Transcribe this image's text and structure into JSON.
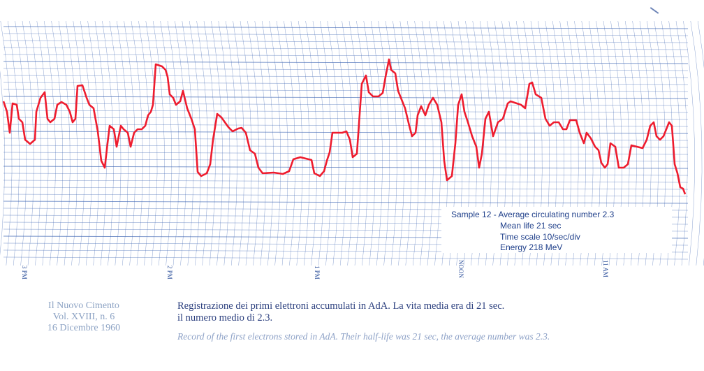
{
  "chart_data": {
    "type": "line",
    "title": "",
    "xlabel": "",
    "ylabel": "",
    "grid": true,
    "grid_color": "#3f66b3",
    "series": [
      {
        "color": "#ee1c2e",
        "points": [
          [
            5,
            145
          ],
          [
            10,
            160
          ],
          [
            14,
            190
          ],
          [
            18,
            148
          ],
          [
            24,
            150
          ],
          [
            27,
            170
          ],
          [
            32,
            175
          ],
          [
            36,
            200
          ],
          [
            43,
            206
          ],
          [
            50,
            200
          ],
          [
            52,
            160
          ],
          [
            58,
            140
          ],
          [
            64,
            132
          ],
          [
            68,
            170
          ],
          [
            72,
            175
          ],
          [
            78,
            170
          ],
          [
            82,
            150
          ],
          [
            88,
            146
          ],
          [
            95,
            150
          ],
          [
            100,
            160
          ],
          [
            104,
            175
          ],
          [
            108,
            170
          ],
          [
            111,
            123
          ],
          [
            118,
            122
          ],
          [
            124,
            140
          ],
          [
            128,
            150
          ],
          [
            134,
            155
          ],
          [
            140,
            188
          ],
          [
            145,
            230
          ],
          [
            150,
            240
          ],
          [
            154,
            205
          ],
          [
            157,
            180
          ],
          [
            163,
            185
          ],
          [
            167,
            210
          ],
          [
            173,
            180
          ],
          [
            177,
            185
          ],
          [
            183,
            190
          ],
          [
            187,
            210
          ],
          [
            192,
            190
          ],
          [
            197,
            185
          ],
          [
            203,
            185
          ],
          [
            208,
            180
          ],
          [
            212,
            165
          ],
          [
            216,
            160
          ],
          [
            219,
            150
          ],
          [
            223,
            92
          ],
          [
            232,
            95
          ],
          [
            237,
            100
          ],
          [
            240,
            110
          ],
          [
            243,
            135
          ],
          [
            248,
            140
          ],
          [
            252,
            150
          ],
          [
            258,
            145
          ],
          [
            262,
            130
          ],
          [
            268,
            155
          ],
          [
            274,
            170
          ],
          [
            279,
            185
          ],
          [
            283,
            246
          ],
          [
            288,
            252
          ],
          [
            296,
            248
          ],
          [
            301,
            235
          ],
          [
            305,
            200
          ],
          [
            311,
            163
          ],
          [
            317,
            168
          ],
          [
            322,
            175
          ],
          [
            327,
            182
          ],
          [
            333,
            188
          ],
          [
            341,
            184
          ],
          [
            346,
            183
          ],
          [
            352,
            190
          ],
          [
            358,
            215
          ],
          [
            365,
            220
          ],
          [
            370,
            240
          ],
          [
            376,
            248
          ],
          [
            392,
            247
          ],
          [
            405,
            249
          ],
          [
            414,
            245
          ],
          [
            420,
            228
          ],
          [
            430,
            225
          ],
          [
            446,
            229
          ],
          [
            450,
            248
          ],
          [
            458,
            252
          ],
          [
            464,
            245
          ],
          [
            468,
            230
          ],
          [
            472,
            218
          ],
          [
            476,
            190
          ],
          [
            490,
            190
          ],
          [
            496,
            188
          ],
          [
            501,
            200
          ],
          [
            505,
            225
          ],
          [
            511,
            220
          ],
          [
            518,
            120
          ],
          [
            524,
            108
          ],
          [
            528,
            132
          ],
          [
            534,
            138
          ],
          [
            542,
            138
          ],
          [
            548,
            133
          ],
          [
            552,
            110
          ],
          [
            557,
            85
          ],
          [
            560,
            100
          ],
          [
            566,
            105
          ],
          [
            570,
            130
          ],
          [
            574,
            140
          ],
          [
            580,
            155
          ],
          [
            586,
            180
          ],
          [
            590,
            195
          ],
          [
            595,
            190
          ],
          [
            598,
            165
          ],
          [
            603,
            152
          ],
          [
            609,
            165
          ],
          [
            614,
            150
          ],
          [
            620,
            140
          ],
          [
            626,
            150
          ],
          [
            632,
            175
          ],
          [
            636,
            230
          ],
          [
            640,
            258
          ],
          [
            647,
            252
          ],
          [
            652,
            205
          ],
          [
            656,
            150
          ],
          [
            661,
            135
          ],
          [
            665,
            160
          ],
          [
            670,
            175
          ],
          [
            676,
            195
          ],
          [
            682,
            210
          ],
          [
            686,
            240
          ],
          [
            690,
            220
          ],
          [
            695,
            170
          ],
          [
            700,
            160
          ],
          [
            706,
            195
          ],
          [
            713,
            175
          ],
          [
            720,
            170
          ],
          [
            727,
            148
          ],
          [
            731,
            145
          ],
          [
            740,
            148
          ],
          [
            746,
            150
          ],
          [
            752,
            155
          ],
          [
            758,
            120
          ],
          [
            762,
            118
          ],
          [
            767,
            135
          ],
          [
            775,
            140
          ],
          [
            781,
            170
          ],
          [
            787,
            180
          ],
          [
            793,
            175
          ],
          [
            800,
            175
          ],
          [
            806,
            185
          ],
          [
            811,
            185
          ],
          [
            816,
            172
          ],
          [
            825,
            172
          ],
          [
            830,
            190
          ],
          [
            836,
            205
          ],
          [
            840,
            190
          ],
          [
            846,
            198
          ],
          [
            852,
            210
          ],
          [
            857,
            215
          ],
          [
            861,
            233
          ],
          [
            866,
            240
          ],
          [
            870,
            235
          ],
          [
            874,
            205
          ],
          [
            881,
            210
          ],
          [
            886,
            240
          ],
          [
            893,
            240
          ],
          [
            899,
            235
          ],
          [
            904,
            208
          ],
          [
            912,
            210
          ],
          [
            920,
            212
          ],
          [
            926,
            200
          ],
          [
            931,
            180
          ],
          [
            936,
            175
          ],
          [
            940,
            195
          ],
          [
            945,
            200
          ],
          [
            950,
            195
          ],
          [
            954,
            185
          ],
          [
            958,
            175
          ],
          [
            962,
            180
          ],
          [
            966,
            235
          ],
          [
            970,
            248
          ],
          [
            974,
            268
          ],
          [
            978,
            270
          ],
          [
            981,
            278
          ]
        ]
      }
    ],
    "tick_labels": [
      "3 PM",
      "2 PM",
      "1 PM",
      "NOON",
      "11 AM"
    ],
    "annotation": {
      "lines": [
        "Sample 12 - Average circulating number 2.3",
        "Mean life 21 sec",
        "Time scale 10/sec/div",
        "Energy 218 MeV"
      ],
      "color": "#1f3f8a"
    }
  },
  "caption": {
    "journal_lines": [
      "Il Nuovo Cimento",
      "Vol. XVIII, n. 6",
      "16 Dicembre 1960"
    ],
    "italian_lines": [
      "Registrazione dei primi elettroni accumulati in AdA. La vita media era di 21 sec.",
      "il numero medio di 2.3."
    ],
    "english": "Record of the first electrons stored in AdA. Their half-life was 21 sec, the average number was 2.3."
  }
}
